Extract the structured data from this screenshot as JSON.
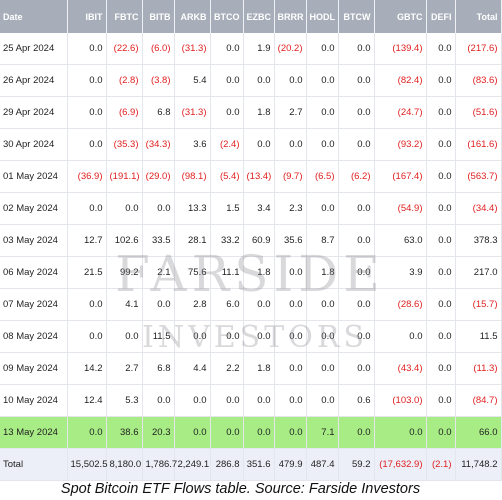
{
  "table": {
    "headers": [
      "Date",
      "IBIT",
      "FBTC",
      "BITB",
      "ARKB",
      "BTCO",
      "EZBC",
      "BRRR",
      "HODL",
      "BTCW",
      "GBTC",
      "DEFI",
      "Total"
    ],
    "rows": [
      [
        "25 Apr 2024",
        "0.0",
        "(22.6)",
        "(6.0)",
        "(31.3)",
        "0.0",
        "1.9",
        "(20.2)",
        "0.0",
        "0.0",
        "(139.4)",
        "0.0",
        "(217.6)"
      ],
      [
        "26 Apr 2024",
        "0.0",
        "(2.8)",
        "(3.8)",
        "5.4",
        "0.0",
        "0.0",
        "0.0",
        "0.0",
        "0.0",
        "(82.4)",
        "0.0",
        "(83.6)"
      ],
      [
        "29 Apr 2024",
        "0.0",
        "(6.9)",
        "6.8",
        "(31.3)",
        "0.0",
        "1.8",
        "2.7",
        "0.0",
        "0.0",
        "(24.7)",
        "0.0",
        "(51.6)"
      ],
      [
        "30 Apr 2024",
        "0.0",
        "(35.3)",
        "(34.3)",
        "3.6",
        "(2.4)",
        "0.0",
        "0.0",
        "0.0",
        "0.0",
        "(93.2)",
        "0.0",
        "(161.6)"
      ],
      [
        "01 May 2024",
        "(36.9)",
        "(191.1)",
        "(29.0)",
        "(98.1)",
        "(5.4)",
        "(13.4)",
        "(9.7)",
        "(6.5)",
        "(6.2)",
        "(167.4)",
        "0.0",
        "(563.7)"
      ],
      [
        "02 May 2024",
        "0.0",
        "0.0",
        "0.0",
        "13.3",
        "1.5",
        "3.4",
        "2.3",
        "0.0",
        "0.0",
        "(54.9)",
        "0.0",
        "(34.4)"
      ],
      [
        "03 May 2024",
        "12.7",
        "102.6",
        "33.5",
        "28.1",
        "33.2",
        "60.9",
        "35.6",
        "8.7",
        "0.0",
        "63.0",
        "0.0",
        "378.3"
      ],
      [
        "06 May 2024",
        "21.5",
        "99.2",
        "2.1",
        "75.6",
        "11.1",
        "1.8",
        "0.0",
        "1.8",
        "0.0",
        "3.9",
        "0.0",
        "217.0"
      ],
      [
        "07 May 2024",
        "0.0",
        "4.1",
        "0.0",
        "2.8",
        "6.0",
        "0.0",
        "0.0",
        "0.0",
        "0.0",
        "(28.6)",
        "0.0",
        "(15.7)"
      ],
      [
        "08 May 2024",
        "0.0",
        "0.0",
        "11.5",
        "0.0",
        "0.0",
        "0.0",
        "0.0",
        "0.0",
        "0.0",
        "0.0",
        "0.0",
        "11.5"
      ],
      [
        "09 May 2024",
        "14.2",
        "2.7",
        "6.8",
        "4.4",
        "2.2",
        "1.8",
        "0.0",
        "0.0",
        "0.0",
        "(43.4)",
        "0.0",
        "(11.3)"
      ],
      [
        "10 May 2024",
        "12.4",
        "5.3",
        "0.0",
        "0.0",
        "0.0",
        "0.0",
        "0.0",
        "0.0",
        "0.6",
        "(103.0)",
        "0.0",
        "(84.7)"
      ],
      [
        "13 May 2024",
        "0.0",
        "38.6",
        "20.3",
        "0.0",
        "0.0",
        "0.0",
        "0.0",
        "7.1",
        "0.0",
        "0.0",
        "0.0",
        "66.0"
      ]
    ],
    "highlighted_row": 12,
    "total_row": [
      "Total",
      "15,502.5",
      "8,180.0",
      "1,786.7",
      "2,249.1",
      "286.8",
      "351.6",
      "479.9",
      "487.4",
      "59.2",
      "(17,632.9)",
      "(2.1)",
      "11,748.2"
    ]
  },
  "watermark": {
    "line1": "FARSIDE",
    "line2": "INVESTORS"
  },
  "caption": "Spot Bitcoin ETF Flows table. Source: Farside Investors",
  "colors": {
    "header_bg": "#a7aeb9",
    "negative": "#e02020",
    "highlight": "#a8ec86",
    "total_bg": "#eceff7"
  }
}
